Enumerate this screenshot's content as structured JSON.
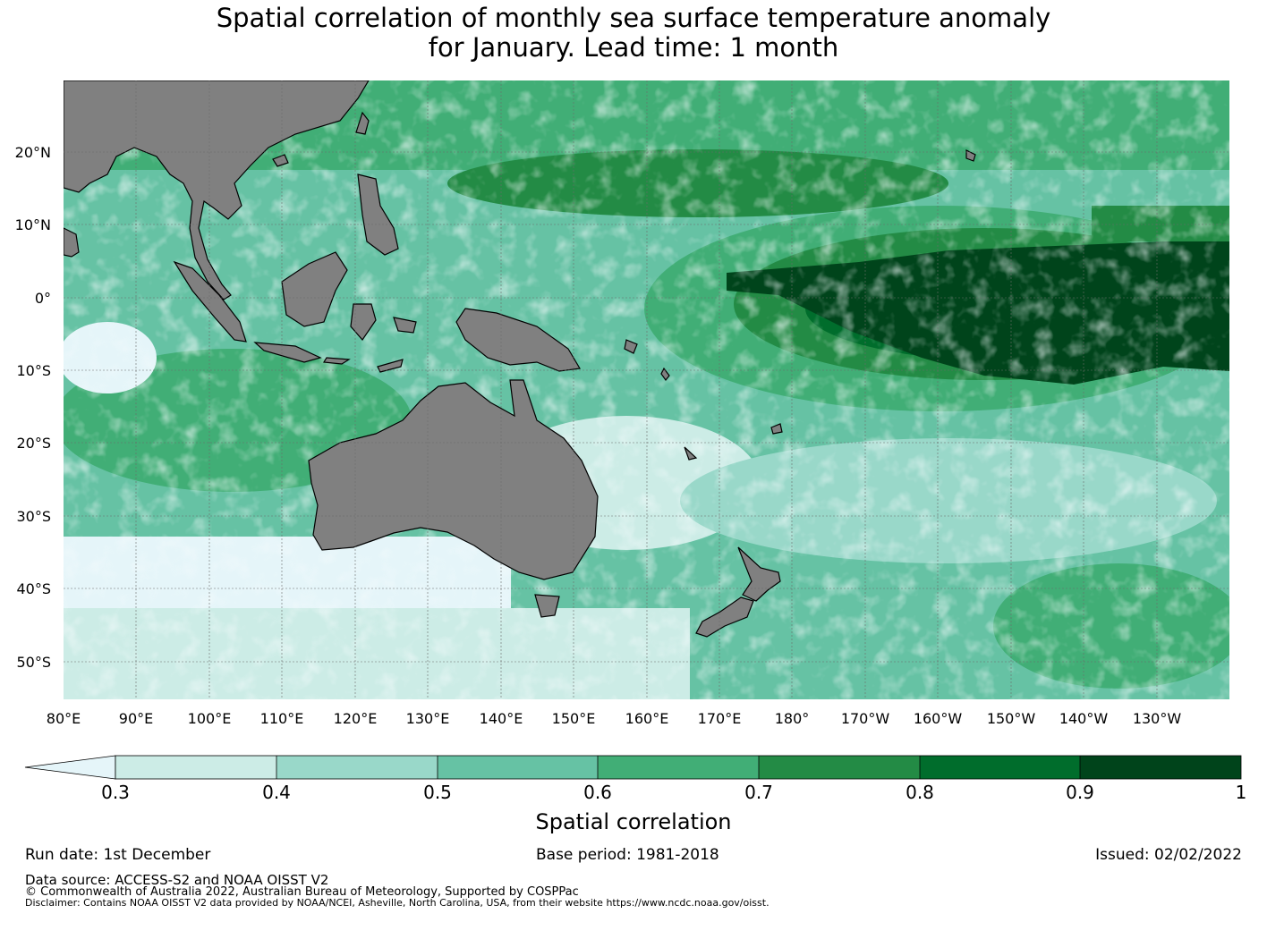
{
  "title": {
    "line1": "Spatial correlation of monthly sea surface temperature anomaly",
    "line2": "for January. Lead time: 1 month"
  },
  "map": {
    "lon_labels": [
      "80°E",
      "90°E",
      "100°E",
      "110°E",
      "120°E",
      "130°E",
      "140°E",
      "150°E",
      "160°E",
      "170°E",
      "180°",
      "170°W",
      "160°W",
      "150°W",
      "140°W",
      "130°W"
    ],
    "lat_labels": [
      "20°N",
      "10°N",
      "0°",
      "10°S",
      "20°S",
      "30°S",
      "40°S",
      "50°S"
    ],
    "lon_range": [
      80,
      240
    ],
    "lat_range": [
      -55,
      30
    ],
    "land_color": "#808080",
    "grid": true
  },
  "colorbar": {
    "title": "Spatial correlation",
    "tick_labels": [
      "0.3",
      "0.4",
      "0.5",
      "0.6",
      "0.7",
      "0.8",
      "0.9",
      "1"
    ],
    "below_color": "#e5f5f9",
    "colors": [
      "#ccece6",
      "#99d8c9",
      "#66c2a4",
      "#41ae76",
      "#238b45",
      "#006d2c",
      "#00441b"
    ]
  },
  "footer": {
    "run_date": "Run date: 1st December",
    "base_period": "Base period: 1981-2018",
    "issued": "Issued: 02/02/2022",
    "data_source": "Data source: ACCESS-S2 and NOAA OISST V2",
    "copyright": "© Commonwealth of Australia 2022, Australian Bureau of Meteorology, Supported by COSPPac",
    "disclaimer": "Disclaimer: Contains NOAA OISST V2 data provided by NOAA/NCEI, Asheville, North Carolina, USA, from their website https://www.ncdc.noaa.gov/oisst."
  }
}
